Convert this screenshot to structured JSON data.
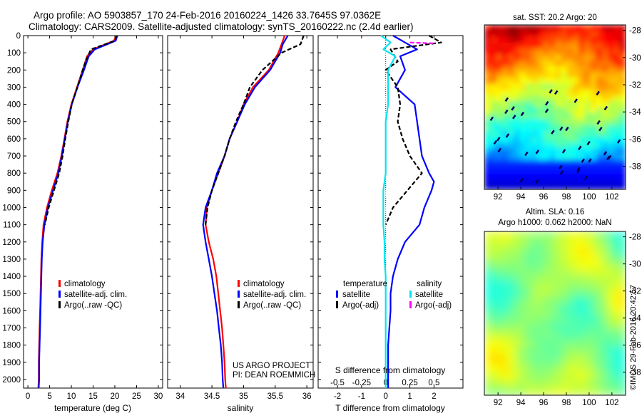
{
  "header": {
    "title_line1": "Argo profile: AO 5903857_170 24-Feb-2016 20160224_1426 33.7645S 97.0362E",
    "title_line2": "Climatology: CARS2009. Satellite-adjusted climatology: synTS_20160222.nc (2.4d earlier)"
  },
  "colors": {
    "climatology": "#ff0000",
    "satellite": "#0000ff",
    "argo": "#000000",
    "sal_satellite": "#00e5ee",
    "sal_argo": "#ff00ff"
  },
  "credits": {
    "project": "US ARGO PROJECT",
    "pi": "PI: DEAN ROEMMICH",
    "imos": "©IMOS 29-Feb-2016 20:42:57"
  },
  "chart_data": [
    {
      "type": "line",
      "name": "temperature-profile",
      "xlabel": "temperature (deg C)",
      "xlim": [
        -1,
        31
      ],
      "ylim": [
        2050,
        0
      ],
      "xticks": [
        0,
        5,
        10,
        15,
        20,
        25,
        30
      ],
      "yticks": [
        0,
        100,
        200,
        300,
        400,
        500,
        600,
        700,
        800,
        900,
        1000,
        1100,
        1200,
        1300,
        1400,
        1500,
        1600,
        1700,
        1800,
        1900,
        2000
      ],
      "legend": [
        "climatology",
        "satellite-adj. clim.",
        "Argo(..raw -QC)"
      ],
      "series": [
        {
          "name": "climatology",
          "color": "#ff0000",
          "dash": "",
          "points": [
            [
              20.3,
              0
            ],
            [
              19.8,
              30
            ],
            [
              15.0,
              80
            ],
            [
              13.6,
              120
            ],
            [
              12.6,
              200
            ],
            [
              11.3,
              300
            ],
            [
              10.0,
              400
            ],
            [
              9.1,
              500
            ],
            [
              8.4,
              600
            ],
            [
              7.7,
              700
            ],
            [
              6.8,
              800
            ],
            [
              5.5,
              900
            ],
            [
              4.4,
              1000
            ],
            [
              3.6,
              1100
            ],
            [
              3.3,
              1200
            ],
            [
              3.1,
              1300
            ],
            [
              3.0,
              1400
            ],
            [
              2.9,
              1500
            ],
            [
              2.8,
              1600
            ],
            [
              2.7,
              1700
            ],
            [
              2.6,
              1800
            ],
            [
              2.5,
              1900
            ],
            [
              2.5,
              2000
            ],
            [
              2.4,
              2050
            ]
          ]
        },
        {
          "name": "satellite-adj. clim.",
          "color": "#0000ff",
          "dash": "",
          "points": [
            [
              20.6,
              0
            ],
            [
              20.2,
              30
            ],
            [
              15.4,
              80
            ],
            [
              14.0,
              120
            ],
            [
              12.9,
              200
            ],
            [
              11.4,
              300
            ],
            [
              10.1,
              400
            ],
            [
              9.2,
              500
            ],
            [
              8.5,
              600
            ],
            [
              7.8,
              700
            ],
            [
              7.0,
              800
            ],
            [
              5.8,
              900
            ],
            [
              4.6,
              1000
            ],
            [
              3.8,
              1100
            ],
            [
              3.4,
              1200
            ],
            [
              3.2,
              1300
            ],
            [
              3.1,
              1400
            ],
            [
              3.0,
              1500
            ],
            [
              2.9,
              1600
            ],
            [
              2.8,
              1700
            ],
            [
              2.7,
              1800
            ],
            [
              2.6,
              1900
            ],
            [
              2.6,
              2000
            ],
            [
              2.5,
              2050
            ]
          ]
        },
        {
          "name": "Argo(..raw -QC)",
          "color": "#000000",
          "dash": "6,3",
          "points": [
            [
              20.4,
              0
            ],
            [
              20.0,
              30
            ],
            [
              14.5,
              80
            ],
            [
              13.3,
              150
            ],
            [
              12.6,
              200
            ],
            [
              11.4,
              300
            ],
            [
              10.1,
              400
            ],
            [
              9.3,
              500
            ],
            [
              8.6,
              600
            ],
            [
              8.0,
              700
            ],
            [
              7.2,
              800
            ],
            [
              6.0,
              900
            ],
            [
              4.8,
              1000
            ],
            [
              3.9,
              1100
            ]
          ]
        }
      ]
    },
    {
      "type": "line",
      "name": "salinity-profile",
      "xlabel": "salinity",
      "xlim": [
        33.8,
        36.1
      ],
      "ylim": [
        2050,
        0
      ],
      "xticks": [
        34,
        34.5,
        35,
        35.5,
        36
      ],
      "legend": [
        "climatology",
        "satellite-adj. clim.",
        "Argo(..raw -QC)"
      ],
      "series": [
        {
          "name": "climatology",
          "color": "#ff0000",
          "dash": "",
          "points": [
            [
              35.65,
              0
            ],
            [
              35.6,
              50
            ],
            [
              35.55,
              100
            ],
            [
              35.4,
              200
            ],
            [
              35.15,
              300
            ],
            [
              35.0,
              400
            ],
            [
              34.9,
              500
            ],
            [
              34.78,
              600
            ],
            [
              34.7,
              700
            ],
            [
              34.6,
              800
            ],
            [
              34.5,
              900
            ],
            [
              34.42,
              1000
            ],
            [
              34.4,
              1100
            ],
            [
              34.45,
              1200
            ],
            [
              34.52,
              1300
            ],
            [
              34.57,
              1400
            ],
            [
              34.6,
              1500
            ],
            [
              34.63,
              1600
            ],
            [
              34.66,
              1700
            ],
            [
              34.68,
              1800
            ],
            [
              34.7,
              1900
            ],
            [
              34.71,
              2000
            ],
            [
              34.72,
              2050
            ]
          ]
        },
        {
          "name": "satellite-adj. clim.",
          "color": "#0000ff",
          "dash": "",
          "points": [
            [
              35.7,
              0
            ],
            [
              35.62,
              50
            ],
            [
              35.58,
              100
            ],
            [
              35.42,
              200
            ],
            [
              35.18,
              300
            ],
            [
              35.02,
              400
            ],
            [
              34.9,
              500
            ],
            [
              34.78,
              600
            ],
            [
              34.7,
              700
            ],
            [
              34.58,
              800
            ],
            [
              34.5,
              900
            ],
            [
              34.4,
              1000
            ],
            [
              34.36,
              1100
            ],
            [
              34.4,
              1200
            ],
            [
              34.45,
              1300
            ],
            [
              34.5,
              1400
            ],
            [
              34.54,
              1500
            ],
            [
              34.58,
              1600
            ],
            [
              34.61,
              1700
            ],
            [
              34.64,
              1800
            ],
            [
              34.66,
              1900
            ],
            [
              34.67,
              2000
            ],
            [
              34.68,
              2050
            ]
          ]
        },
        {
          "name": "Argo(..raw -QC)",
          "color": "#000000",
          "dash": "6,3",
          "points": [
            [
              35.95,
              0
            ],
            [
              35.9,
              50
            ],
            [
              35.6,
              100
            ],
            [
              35.3,
              200
            ],
            [
              35.1,
              300
            ],
            [
              35.0,
              400
            ],
            [
              34.88,
              500
            ],
            [
              34.78,
              600
            ],
            [
              34.7,
              700
            ],
            [
              34.6,
              800
            ],
            [
              34.5,
              900
            ],
            [
              34.43,
              1000
            ],
            [
              34.4,
              1100
            ]
          ]
        }
      ]
    },
    {
      "type": "line",
      "name": "difference-profile",
      "xlabel": "T difference from climatology",
      "xlabel_top": "S difference from climatology",
      "xlim": [
        -2.8,
        3.2
      ],
      "ylim": [
        2050,
        0
      ],
      "xticks": [
        -2,
        -1,
        0,
        1,
        2
      ],
      "top_tick_labels": [
        "-0.5",
        "-0.25",
        "0",
        "0.25",
        "0.5"
      ],
      "top_tick_pos": [
        -2,
        -1,
        0,
        1,
        2
      ],
      "legend_left_title": "temperature",
      "legend_right_title": "salinity",
      "legend_left": [
        "satellite",
        "Argo(-adj)"
      ],
      "legend_right": [
        "satellite",
        "Argo(-adj)"
      ],
      "series": [
        {
          "name": "T satellite",
          "color": "#0000ff",
          "dash": "",
          "points": [
            [
              0.3,
              0
            ],
            [
              0.8,
              40
            ],
            [
              1.3,
              80
            ],
            [
              0.6,
              120
            ],
            [
              0.8,
              200
            ],
            [
              0.4,
              300
            ],
            [
              1.2,
              400
            ],
            [
              1.3,
              500
            ],
            [
              1.4,
              600
            ],
            [
              1.5,
              700
            ],
            [
              1.8,
              800
            ],
            [
              2.0,
              850
            ],
            [
              1.9,
              900
            ],
            [
              1.6,
              1000
            ],
            [
              1.4,
              1100
            ],
            [
              0.8,
              1200
            ],
            [
              0.5,
              1300
            ],
            [
              0.3,
              1400
            ],
            [
              0.2,
              1500
            ],
            [
              0.2,
              1600
            ],
            [
              0.15,
              1700
            ],
            [
              0.1,
              1800
            ],
            [
              0.1,
              1900
            ],
            [
              0.1,
              2000
            ],
            [
              0.1,
              2050
            ]
          ]
        },
        {
          "name": "T Argo(-adj)",
          "color": "#000000",
          "dash": "6,3",
          "points": [
            [
              1.8,
              0
            ],
            [
              2.3,
              40
            ],
            [
              0.2,
              80
            ],
            [
              0.5,
              150
            ],
            [
              0.0,
              200
            ],
            [
              0.5,
              300
            ],
            [
              0.6,
              400
            ],
            [
              0.5,
              500
            ],
            [
              0.7,
              600
            ],
            [
              1.0,
              700
            ],
            [
              1.5,
              800
            ],
            [
              0.9,
              900
            ],
            [
              0.3,
              1000
            ],
            [
              0.0,
              1100
            ]
          ]
        },
        {
          "name": "S satellite",
          "color": "#00e5ee",
          "dash": "",
          "points": [
            [
              -0.2,
              0
            ],
            [
              0.2,
              40
            ],
            [
              -0.1,
              80
            ],
            [
              0.4,
              120
            ],
            [
              0.1,
              200
            ],
            [
              0.1,
              300
            ],
            [
              0.1,
              400
            ],
            [
              0.0,
              500
            ],
            [
              0.0,
              600
            ],
            [
              0.0,
              700
            ],
            [
              0.0,
              800
            ],
            [
              -0.1,
              900
            ],
            [
              -0.1,
              1000
            ],
            [
              -0.1,
              1100
            ],
            [
              -0.05,
              1200
            ],
            [
              -0.05,
              1300
            ],
            [
              0.0,
              1400
            ],
            [
              0.0,
              1500
            ],
            [
              0.0,
              1600
            ],
            [
              0.0,
              1700
            ],
            [
              0.0,
              1800
            ],
            [
              0.0,
              1900
            ],
            [
              0.0,
              2000
            ],
            [
              0.0,
              2050
            ]
          ]
        },
        {
          "name": "S Argo(-adj)",
          "color": "#ff00ff",
          "dash": "6,3",
          "points": [
            [
              1.0,
              40
            ],
            [
              2.0,
              45
            ]
          ]
        }
      ]
    },
    {
      "type": "heatmap",
      "name": "sst-map",
      "title": "sat. SST: 20.2 Argo: 20",
      "xlim": [
        90.8,
        103.2
      ],
      "ylim": [
        -39.7,
        -27.6
      ],
      "xticks": [
        92,
        94,
        96,
        98,
        100,
        102
      ],
      "yticks": [
        -28,
        -30,
        -32,
        -34,
        -36,
        -38
      ]
    },
    {
      "type": "heatmap",
      "name": "sla-map",
      "title": "Altim. SLA: 0.16",
      "subtitle": "Argo h1000: 0.062 h2000: NaN",
      "xlim": [
        90.8,
        103.2
      ],
      "ylim": [
        -39.7,
        -27.6
      ],
      "xticks": [
        92,
        94,
        96,
        98,
        100,
        102
      ],
      "yticks": [
        -28,
        -30,
        -32,
        -34,
        -36,
        -38
      ]
    }
  ]
}
